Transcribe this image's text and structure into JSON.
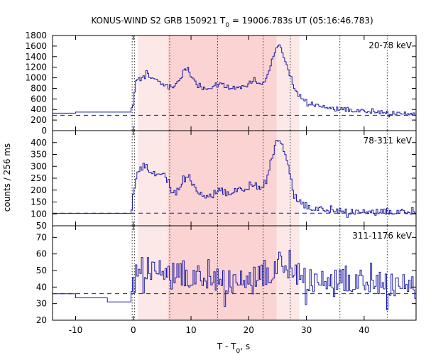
{
  "chart_data": {
    "type": "line",
    "title_prefix": "KONUS-WIND S2 GRB 150921 T",
    "title_sub": "0",
    "title_suffix": " = 19006.783s UT (05:16:46.783)",
    "xlabel_prefix": "T - T",
    "xlabel_sub": "0",
    "xlabel_suffix": ", s",
    "ylabel": "counts / 256 ms",
    "xlim": [
      -14,
      49
    ],
    "x_ticks": [
      -10,
      0,
      10,
      20,
      30,
      40
    ],
    "colors": {
      "series": "#1a1aa6",
      "background_line": "#1a1aa6",
      "vline": "#333333",
      "shade_light": "#fde8e8",
      "shade_dark": "#fbd3d3"
    },
    "shaded_regions": [
      {
        "x0": 0.8,
        "x1": 28.8,
        "shade": "light"
      },
      {
        "x0": 6.0,
        "x1": 24.8,
        "shade": "dark"
      }
    ],
    "vertical_lines": [
      -0.2,
      0.2,
      6.3,
      14.6,
      22.5,
      27.2,
      35.8,
      44.0
    ],
    "bin_width": 0.256,
    "panels": [
      {
        "label": "20-78 keV",
        "ylim": [
          0,
          1800
        ],
        "y_ticks": [
          0,
          200,
          400,
          600,
          800,
          1000,
          1200,
          1400,
          1600,
          1800
        ],
        "background_level": 290,
        "pre_trigger_level": 330,
        "pre_trigger_bins": [
          [
            -14,
            -10,
            330
          ],
          [
            -10,
            -0.4,
            350
          ]
        ],
        "profile": [
          [
            -0.4,
            360
          ],
          [
            0.0,
            520
          ],
          [
            0.4,
            880
          ],
          [
            1.0,
            1000
          ],
          [
            1.6,
            960
          ],
          [
            2.2,
            1080
          ],
          [
            2.8,
            1040
          ],
          [
            3.4,
            990
          ],
          [
            4.2,
            950
          ],
          [
            5.2,
            900
          ],
          [
            6.0,
            820
          ],
          [
            6.6,
            780
          ],
          [
            7.4,
            850
          ],
          [
            8.2,
            970
          ],
          [
            8.8,
            1130
          ],
          [
            9.4,
            1180
          ],
          [
            10.0,
            1060
          ],
          [
            10.8,
            890
          ],
          [
            11.6,
            820
          ],
          [
            12.6,
            770
          ],
          [
            13.6,
            800
          ],
          [
            14.4,
            880
          ],
          [
            15.2,
            900
          ],
          [
            16.0,
            820
          ],
          [
            16.8,
            790
          ],
          [
            17.6,
            800
          ],
          [
            18.6,
            830
          ],
          [
            19.6,
            820
          ],
          [
            20.4,
            920
          ],
          [
            21.2,
            960
          ],
          [
            21.8,
            880
          ],
          [
            22.6,
            900
          ],
          [
            23.4,
            1100
          ],
          [
            24.2,
            1380
          ],
          [
            24.8,
            1560
          ],
          [
            25.2,
            1640
          ],
          [
            25.8,
            1450
          ],
          [
            26.4,
            1300
          ],
          [
            27.0,
            1100
          ],
          [
            27.6,
            860
          ],
          [
            28.4,
            700
          ],
          [
            29.2,
            600
          ],
          [
            30.4,
            520
          ],
          [
            31.6,
            480
          ],
          [
            33.0,
            440
          ],
          [
            34.6,
            410
          ],
          [
            36.0,
            390
          ],
          [
            38.0,
            370
          ],
          [
            40.0,
            350
          ],
          [
            42.0,
            340
          ],
          [
            44.0,
            330
          ],
          [
            46.0,
            320
          ],
          [
            48.0,
            310
          ],
          [
            49.0,
            300
          ]
        ],
        "noise": 28
      },
      {
        "label": "78-311 keV",
        "ylim": [
          50,
          450
        ],
        "y_ticks": [
          50,
          100,
          150,
          200,
          250,
          300,
          350,
          400
        ],
        "background_level": 103,
        "pre_trigger_level": 102,
        "pre_trigger_bins": [
          [
            -14,
            -0.4,
            102
          ]
        ],
        "profile": [
          [
            -0.4,
            110
          ],
          [
            0.0,
            170
          ],
          [
            0.4,
            240
          ],
          [
            1.0,
            275
          ],
          [
            1.6,
            290
          ],
          [
            2.2,
            300
          ],
          [
            2.8,
            280
          ],
          [
            3.4,
            270
          ],
          [
            4.4,
            250
          ],
          [
            5.2,
            275
          ],
          [
            6.0,
            230
          ],
          [
            6.6,
            190
          ],
          [
            7.4,
            185
          ],
          [
            8.2,
            210
          ],
          [
            8.8,
            255
          ],
          [
            9.4,
            265
          ],
          [
            10.0,
            240
          ],
          [
            10.8,
            200
          ],
          [
            11.6,
            180
          ],
          [
            12.6,
            170
          ],
          [
            13.6,
            175
          ],
          [
            14.4,
            190
          ],
          [
            15.2,
            195
          ],
          [
            16.0,
            180
          ],
          [
            16.8,
            185
          ],
          [
            17.6,
            195
          ],
          [
            18.6,
            195
          ],
          [
            19.6,
            200
          ],
          [
            20.4,
            215
          ],
          [
            21.2,
            220
          ],
          [
            21.8,
            200
          ],
          [
            22.6,
            215
          ],
          [
            23.4,
            280
          ],
          [
            24.2,
            350
          ],
          [
            24.8,
            400
          ],
          [
            25.4,
            410
          ],
          [
            26.0,
            370
          ],
          [
            26.6,
            330
          ],
          [
            27.2,
            260
          ],
          [
            27.8,
            180
          ],
          [
            28.6,
            150
          ],
          [
            29.6,
            130
          ],
          [
            31.0,
            120
          ],
          [
            33.0,
            112
          ],
          [
            36.0,
            108
          ],
          [
            40.0,
            106
          ],
          [
            44.0,
            104
          ],
          [
            49.0,
            103
          ]
        ],
        "noise": 9
      },
      {
        "label": "311-1176 keV",
        "ylim": [
          20,
          77
        ],
        "y_ticks": [
          20,
          30,
          40,
          50,
          60,
          70
        ],
        "background_level": 36,
        "pre_trigger_level": 36,
        "pre_trigger_bins": [
          [
            -14,
            -10,
            36
          ],
          [
            -10,
            -4.5,
            33.5
          ],
          [
            -4.5,
            -0.4,
            31
          ]
        ],
        "profile": [
          [
            -0.4,
            36
          ],
          [
            0.2,
            40
          ],
          [
            0.6,
            46
          ],
          [
            1.4,
            50
          ],
          [
            3.0,
            50
          ],
          [
            5.0,
            48
          ],
          [
            7.0,
            45
          ],
          [
            10.0,
            43
          ],
          [
            14.0,
            42
          ],
          [
            18.0,
            42
          ],
          [
            22.0,
            43
          ],
          [
            24.0,
            46
          ],
          [
            25.6,
            52
          ],
          [
            27.0,
            48
          ],
          [
            30.0,
            43
          ],
          [
            35.0,
            41
          ],
          [
            40.0,
            40
          ],
          [
            45.0,
            40
          ],
          [
            49.0,
            40
          ]
        ],
        "noise": 5.5
      }
    ]
  }
}
